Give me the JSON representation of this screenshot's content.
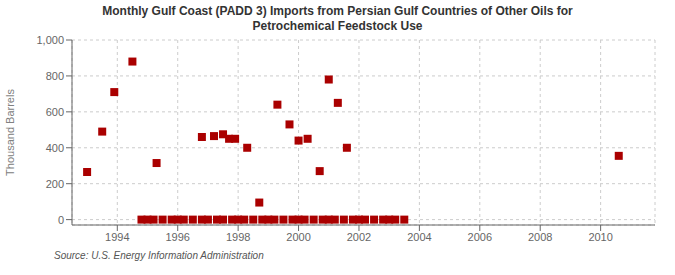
{
  "chart_data": {
    "type": "scatter",
    "title": "Monthly Gulf Coast (PADD 3) Imports from Persian Gulf Countries of Other Oils for\nPetrochemical Feedstock Use",
    "ylabel": "Thousand Barrels",
    "annotations": [
      "Source: U.S. Energy Information Administration"
    ],
    "color": "#aa0000",
    "marker": "square",
    "grid": true,
    "xlim": [
      1992.5,
      2011.8
    ],
    "ylim": [
      -30,
      1000
    ],
    "xticks": [
      1994,
      1996,
      1998,
      2000,
      2002,
      2004,
      2006,
      2008,
      2010
    ],
    "yticks": [
      0,
      200,
      400,
      600,
      800,
      {
        "value": 1000,
        "label": "1,000"
      }
    ],
    "x": [
      1993.0,
      1993.5,
      1993.9,
      1994.5,
      1995.3,
      1996.8,
      1997.2,
      1997.5,
      1997.7,
      1997.9,
      1998.3,
      1998.7,
      1999.3,
      1999.7,
      2000.0,
      2000.3,
      2000.7,
      2001.0,
      2001.3,
      2001.6,
      2010.6,
      1994.8,
      1995.0,
      1995.2,
      1995.5,
      1995.8,
      1996.0,
      1996.2,
      1996.5,
      1996.8,
      1997.0,
      1997.3,
      1997.5,
      1997.8,
      1998.0,
      1998.2,
      1998.5,
      1998.8,
      1999.0,
      1999.2,
      1999.5,
      1999.8,
      2000.0,
      2000.2,
      2000.5,
      2000.8,
      2001.0,
      2001.2,
      2001.5,
      2001.8,
      2002.0,
      2002.2,
      2002.5,
      2002.8,
      2003.0,
      2003.2,
      2003.5
    ],
    "values": [
      265,
      490,
      710,
      880,
      315,
      460,
      465,
      475,
      450,
      450,
      400,
      95,
      640,
      530,
      440,
      450,
      270,
      780,
      650,
      400,
      355,
      0,
      0,
      0,
      0,
      0,
      0,
      0,
      0,
      0,
      0,
      0,
      0,
      0,
      0,
      0,
      0,
      0,
      0,
      0,
      0,
      0,
      0,
      0,
      0,
      0,
      0,
      0,
      0,
      0,
      0,
      0,
      0,
      0,
      0,
      0,
      0
    ]
  }
}
